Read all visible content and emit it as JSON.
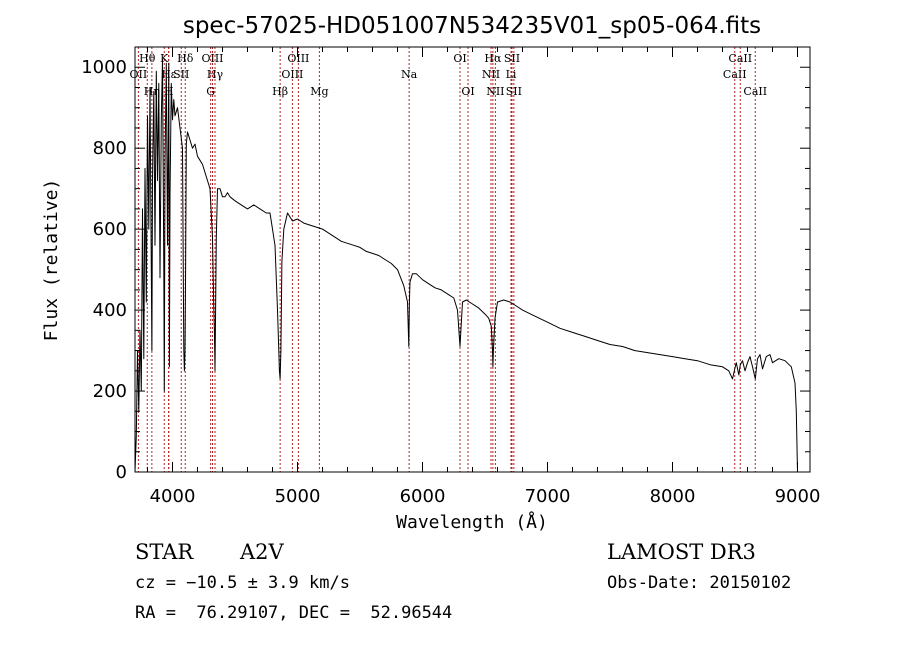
{
  "chart_data": {
    "type": "line",
    "title": "spec-57025-HD051007N534235V01_sp05-064.fits",
    "xlabel": "Wavelength (Å)",
    "ylabel": "Flux (relative)",
    "xlim": [
      3700,
      9100
    ],
    "ylim": [
      0,
      1050
    ],
    "x_ticks": [
      4000,
      5000,
      6000,
      7000,
      8000,
      9000
    ],
    "x_tick_labels": [
      "4000",
      "5000",
      "6000",
      "7000",
      "8000",
      "9000"
    ],
    "y_ticks": [
      0,
      200,
      400,
      600,
      800,
      1000
    ],
    "y_tick_labels": [
      "0",
      "200",
      "400",
      "600",
      "800",
      "1000"
    ],
    "series": [
      {
        "name": "spectrum",
        "color": "#000000",
        "x": [
          3700,
          3710,
          3720,
          3730,
          3740,
          3750,
          3760,
          3770,
          3780,
          3790,
          3800,
          3810,
          3820,
          3830,
          3835,
          3840,
          3850,
          3860,
          3870,
          3880,
          3890,
          3900,
          3910,
          3920,
          3930,
          3934,
          3940,
          3950,
          3960,
          3970,
          3975,
          3980,
          3990,
          4000,
          4010,
          4020,
          4040,
          4060,
          4080,
          4090,
          4095,
          4100,
          4105,
          4110,
          4120,
          4140,
          4160,
          4180,
          4200,
          4220,
          4240,
          4260,
          4280,
          4300,
          4320,
          4330,
          4335,
          4340,
          4345,
          4350,
          4360,
          4380,
          4400,
          4420,
          4440,
          4460,
          4480,
          4500,
          4550,
          4600,
          4650,
          4700,
          4750,
          4780,
          4820,
          4840,
          4850,
          4855,
          4861,
          4867,
          4875,
          4890,
          4920,
          4960,
          5000,
          5050,
          5100,
          5150,
          5200,
          5250,
          5300,
          5350,
          5400,
          5450,
          5500,
          5550,
          5600,
          5650,
          5700,
          5750,
          5800,
          5850,
          5880,
          5890,
          5895,
          5900,
          5920,
          5950,
          6000,
          6050,
          6100,
          6150,
          6200,
          6250,
          6280,
          6300,
          6320,
          6350,
          6400,
          6450,
          6500,
          6530,
          6550,
          6560,
          6563,
          6567,
          6580,
          6600,
          6650,
          6700,
          6750,
          6800,
          6900,
          7000,
          7100,
          7200,
          7300,
          7400,
          7500,
          7600,
          7700,
          7800,
          7900,
          8000,
          8100,
          8200,
          8300,
          8400,
          8450,
          8480,
          8498,
          8510,
          8530,
          8542,
          8560,
          8580,
          8600,
          8620,
          8640,
          8662,
          8680,
          8700,
          8720,
          8750,
          8780,
          8800,
          8850,
          8900,
          8950,
          8980,
          8990,
          9000
        ],
        "values": [
          0,
          90,
          300,
          150,
          350,
          200,
          650,
          280,
          750,
          420,
          880,
          600,
          950,
          500,
          300,
          720,
          940,
          560,
          990,
          720,
          960,
          480,
          870,
          1020,
          500,
          200,
          760,
          1010,
          560,
          1010,
          260,
          680,
          960,
          870,
          920,
          880,
          900,
          850,
          800,
          300,
          250,
          300,
          500,
          810,
          840,
          820,
          800,
          810,
          780,
          770,
          760,
          740,
          720,
          700,
          580,
          400,
          350,
          250,
          400,
          580,
          700,
          700,
          680,
          680,
          690,
          680,
          675,
          670,
          660,
          650,
          660,
          650,
          640,
          640,
          560,
          400,
          300,
          250,
          230,
          300,
          520,
          600,
          640,
          620,
          625,
          615,
          610,
          605,
          600,
          590,
          580,
          570,
          565,
          560,
          555,
          545,
          540,
          535,
          525,
          515,
          500,
          460,
          420,
          310,
          420,
          470,
          490,
          490,
          475,
          465,
          455,
          450,
          440,
          430,
          400,
          310,
          420,
          425,
          415,
          405,
          390,
          380,
          360,
          300,
          260,
          300,
          380,
          420,
          425,
          420,
          410,
          400,
          385,
          370,
          355,
          345,
          335,
          325,
          315,
          310,
          300,
          295,
          290,
          285,
          280,
          275,
          265,
          260,
          250,
          230,
          255,
          270,
          240,
          265,
          275,
          250,
          270,
          285,
          260,
          230,
          280,
          290,
          255,
          285,
          290,
          270,
          280,
          275,
          260,
          220,
          150,
          0
        ],
        "label_values": []
      }
    ],
    "lines": [
      {
        "name": "OII",
        "x": 3727,
        "label": "OII",
        "row": 2
      },
      {
        "name": "Hθ",
        "x": 3798,
        "label": "Hθ",
        "row": 1
      },
      {
        "name": "Hη",
        "x": 3835,
        "label": "Hη",
        "row": 3
      },
      {
        "name": "K",
        "x": 3934,
        "label": "K",
        "row": 1
      },
      {
        "name": "H",
        "x": 3969,
        "label": "H",
        "row": 3
      },
      {
        "name": "Hε",
        "x": 3970,
        "label": "Hε",
        "row": 2
      },
      {
        "name": "SII",
        "x": 4070,
        "label": "SII",
        "row": 2
      },
      {
        "name": "Hδ",
        "x": 4102,
        "label": "Hδ",
        "row": 1
      },
      {
        "name": "OIII",
        "x": 4320,
        "label": "OIII",
        "row": 1
      },
      {
        "name": "Hγ",
        "x": 4340,
        "label": "Hγ",
        "row": 2
      },
      {
        "name": "G",
        "x": 4305,
        "label": "G",
        "row": 3
      },
      {
        "name": "Hβ",
        "x": 4861,
        "label": "Hβ",
        "row": 3
      },
      {
        "name": "OIII-1",
        "x": 4959,
        "label": "OIII",
        "row": 2
      },
      {
        "name": "OIII-2",
        "x": 5007,
        "label": "OIII",
        "row": 1
      },
      {
        "name": "Mg",
        "x": 5175,
        "label": "Mg",
        "row": 3
      },
      {
        "name": "Na",
        "x": 5893,
        "label": "Na",
        "row": 2
      },
      {
        "name": "OI-1",
        "x": 6300,
        "label": "OI",
        "row": 1
      },
      {
        "name": "OI-2",
        "x": 6364,
        "label": "OI",
        "row": 3
      },
      {
        "name": "NII-1",
        "x": 6548,
        "label": "NII",
        "row": 2
      },
      {
        "name": "Hα",
        "x": 6563,
        "label": "Hα",
        "row": 1
      },
      {
        "name": "NII-2",
        "x": 6583,
        "label": "NII",
        "row": 3
      },
      {
        "name": "Li",
        "x": 6708,
        "label": "Li",
        "row": 2
      },
      {
        "name": "SII-1",
        "x": 6716,
        "label": "SII",
        "row": 1
      },
      {
        "name": "SII-2",
        "x": 6731,
        "label": "SII",
        "row": 3
      },
      {
        "name": "CaII-1",
        "x": 8498,
        "label": "CaII",
        "row": 2
      },
      {
        "name": "CaII-2",
        "x": 8542,
        "label": "CaII",
        "row": 1
      },
      {
        "name": "CaII-3",
        "x": 8662,
        "label": "CaII",
        "row": 3
      }
    ],
    "line_color": "#b22222",
    "grid": false
  },
  "info": {
    "object_type": "STAR",
    "subclass": "A2V",
    "survey": "LAMOST DR3",
    "cz": "cz = −10.5 ± 3.9 km/s",
    "obs_date": "Obs-Date: 20150102",
    "coords": "RA =  76.29107, DEC =  52.96544"
  }
}
